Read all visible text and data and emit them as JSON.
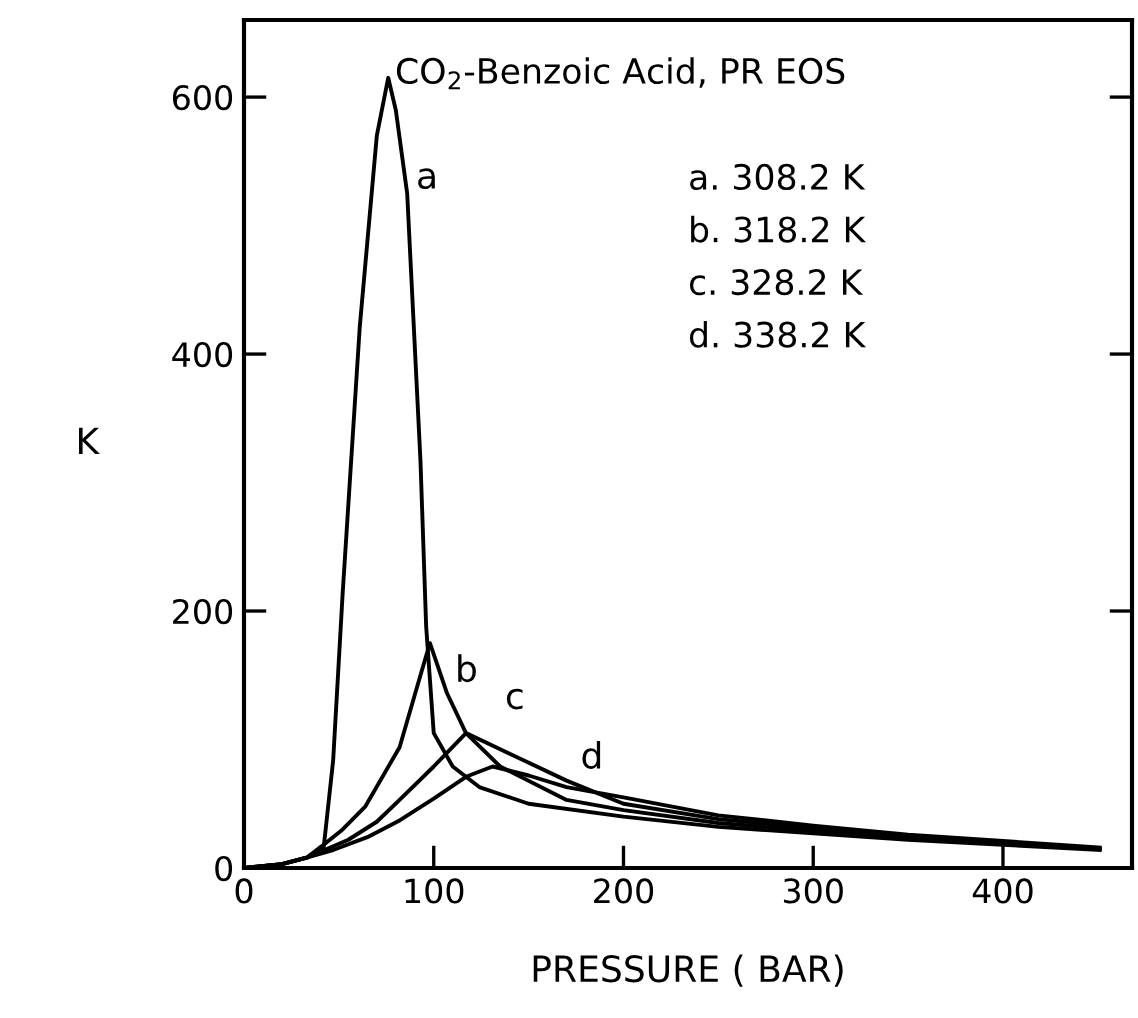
{
  "chart_data": {
    "type": "line",
    "title": "CO$_{2}$-Benzoic Acid, PR EOS",
    "xlabel": "PRESSURE ( BAR)",
    "ylabel": "K",
    "xlim": [
      0,
      468
    ],
    "ylim": [
      0,
      660
    ],
    "xticks": [
      0,
      100,
      200,
      300,
      400
    ],
    "yticks": [
      0,
      200,
      400,
      600
    ],
    "grid": false,
    "legend": false,
    "marker": "none",
    "line_style": "solid",
    "series": [
      {
        "name": "a",
        "color": "#000000",
        "x": [
          0,
          20,
          33,
          42,
          47,
          52,
          61,
          70,
          76,
          80,
          86,
          93,
          96,
          100,
          110,
          124,
          150,
          200,
          250,
          300,
          350,
          400,
          451
        ],
        "values": [
          0,
          3,
          8,
          16,
          84,
          214,
          421,
          570,
          615,
          590,
          525,
          317,
          188,
          105,
          79,
          63,
          50,
          40,
          32,
          27,
          22,
          18,
          14
        ]
      },
      {
        "name": "b",
        "color": "#000000",
        "x": [
          0,
          20,
          33,
          41,
          52,
          64,
          82,
          93,
          98,
          107,
          117,
          135,
          170,
          200,
          250,
          300,
          350,
          400,
          451
        ],
        "values": [
          0,
          3,
          8,
          17,
          30,
          48,
          94,
          150,
          175,
          136,
          105,
          79,
          53,
          45,
          35,
          29,
          24,
          20,
          15
        ]
      },
      {
        "name": "c",
        "color": "#000000",
        "x": [
          0,
          20,
          33,
          55,
          70,
          82,
          100,
          117,
          140,
          170,
          200,
          250,
          300,
          350,
          400,
          451
        ],
        "values": [
          0,
          3,
          8,
          22,
          36,
          53,
          79,
          105,
          89,
          68,
          50,
          38,
          31,
          25,
          20,
          15
        ]
      },
      {
        "name": "d",
        "color": "#000000",
        "x": [
          0,
          20,
          33,
          47,
          65,
          82,
          100,
          117,
          131,
          150,
          170,
          200,
          250,
          300,
          350,
          400,
          451
        ],
        "values": [
          0,
          3,
          8,
          14,
          24,
          37,
          54,
          71,
          79,
          72,
          63,
          55,
          41,
          33,
          26,
          21,
          16
        ]
      }
    ],
    "annotations": [
      "a. 308.2 K",
      "b. 318.2 K",
      "c. 328.2 K",
      "d. 338.2 K"
    ]
  }
}
